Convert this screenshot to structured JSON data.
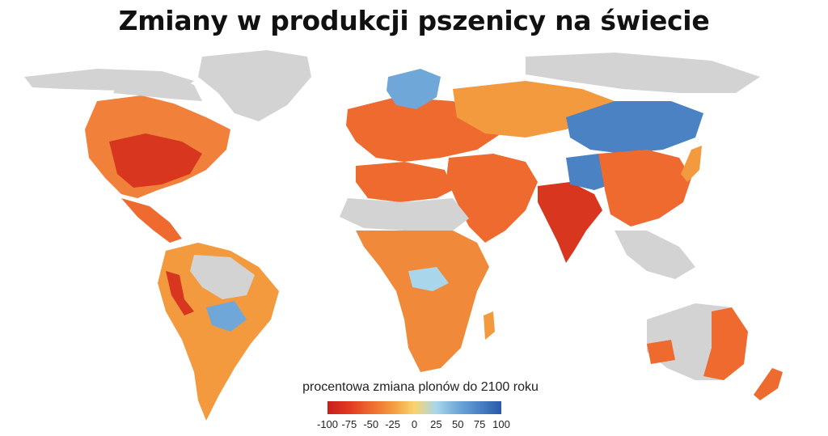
{
  "title": "Zmiany w produkcji pszenicy na świecie",
  "legend": {
    "title": "procentowa zmiana plonów do 2100 roku",
    "ticks": [
      "-100",
      "-75",
      "-50",
      "-25",
      "0",
      "25",
      "50",
      "75",
      "100"
    ],
    "colors": [
      "#c81e1e",
      "#e23a22",
      "#ee6a2f",
      "#f39a3f",
      "#f8d46e",
      "#a9d6ea",
      "#6fa8d8",
      "#4a82c4",
      "#2a5aa8"
    ]
  },
  "map": {
    "land_color": "#d3d3d3",
    "regions": [
      {
        "name": "north-america",
        "change": -45
      },
      {
        "name": "usa-south",
        "change": -75
      },
      {
        "name": "central-america",
        "change": -50
      },
      {
        "name": "south-america",
        "change": -30
      },
      {
        "name": "europe",
        "change": -45
      },
      {
        "name": "scandinavia",
        "change": 50
      },
      {
        "name": "russia-central-asia",
        "change": -35
      },
      {
        "name": "siberia-mongolia",
        "change": 60
      },
      {
        "name": "middle-east",
        "change": -45
      },
      {
        "name": "north-africa",
        "change": -40
      },
      {
        "name": "sub-saharan-africa",
        "change": -40
      },
      {
        "name": "india",
        "change": -70
      },
      {
        "name": "china",
        "change": -45
      },
      {
        "name": "australia",
        "change": -45
      },
      {
        "name": "new-zealand",
        "change": -45
      }
    ]
  }
}
